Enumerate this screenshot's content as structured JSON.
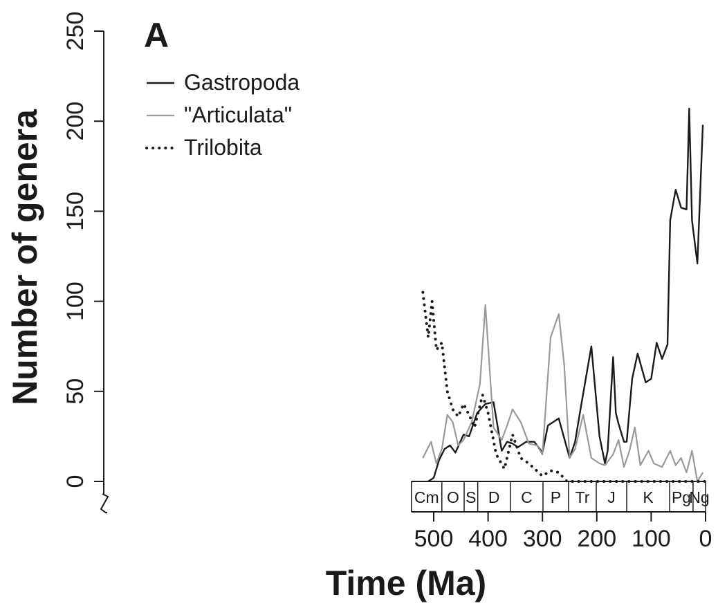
{
  "chart_data": {
    "type": "line",
    "panel_label": "A",
    "title": "",
    "xlabel": "Time (Ma)",
    "ylabel": "Number of genera",
    "xlim": [
      550,
      0
    ],
    "ylim": [
      0,
      250
    ],
    "x_reversed": true,
    "x_ticks": [
      500,
      400,
      300,
      200,
      100,
      0
    ],
    "y_ticks": [
      0,
      50,
      100,
      150,
      200,
      250
    ],
    "x_tick_labels": [
      "500",
      "400",
      "300",
      "200",
      "100",
      "0"
    ],
    "y_tick_labels": [
      "0",
      "50",
      "100",
      "150",
      "200",
      "250"
    ],
    "grid": false,
    "legend_position": "top-left",
    "periods": [
      {
        "label": "Cm",
        "start": 541,
        "end": 485
      },
      {
        "label": "O",
        "start": 485,
        "end": 444
      },
      {
        "label": "S",
        "start": 444,
        "end": 419
      },
      {
        "label": "D",
        "start": 419,
        "end": 359
      },
      {
        "label": "C",
        "start": 359,
        "end": 299
      },
      {
        "label": "P",
        "start": 299,
        "end": 252
      },
      {
        "label": "Tr",
        "start": 252,
        "end": 201
      },
      {
        "label": "J",
        "start": 201,
        "end": 145
      },
      {
        "label": "K",
        "start": 145,
        "end": 66
      },
      {
        "label": "Pg",
        "start": 66,
        "end": 23
      },
      {
        "label": "Ng",
        "start": 23,
        "end": 0
      }
    ],
    "series": [
      {
        "name": "Gastropoda",
        "color": "#1a1a1a",
        "style": "solid",
        "x": [
          510,
          500,
          490,
          480,
          470,
          460,
          445,
          435,
          420,
          405,
          390,
          375,
          365,
          355,
          345,
          330,
          315,
          300,
          290,
          270,
          250,
          240,
          230,
          210,
          195,
          185,
          180,
          170,
          165,
          160,
          150,
          145,
          135,
          125,
          110,
          100,
          90,
          80,
          70,
          65,
          55,
          45,
          35,
          30,
          25,
          15,
          5
        ],
        "y": [
          0,
          2,
          12,
          18,
          20,
          16,
          26,
          25,
          38,
          43,
          44,
          17,
          22,
          21,
          19,
          22,
          22,
          16,
          31,
          35,
          13,
          22,
          40,
          75,
          25,
          10,
          17,
          69,
          38,
          32,
          22,
          22,
          57,
          71,
          55,
          57,
          77,
          68,
          76,
          145,
          162,
          152,
          151,
          207,
          145,
          121,
          198
        ]
      },
      {
        "name": "\"Articulata\"",
        "color": "#999999",
        "style": "solid",
        "x": [
          520,
          505,
          495,
          485,
          475,
          465,
          455,
          445,
          430,
          415,
          405,
          390,
          375,
          365,
          355,
          340,
          325,
          310,
          300,
          285,
          270,
          260,
          250,
          240,
          225,
          210,
          195,
          185,
          170,
          160,
          150,
          140,
          130,
          120,
          105,
          95,
          80,
          65,
          55,
          45,
          35,
          25,
          15,
          5
        ],
        "y": [
          13,
          22,
          10,
          18,
          37,
          33,
          20,
          23,
          33,
          54,
          98,
          30,
          23,
          31,
          40,
          33,
          21,
          20,
          15,
          80,
          93,
          65,
          13,
          18,
          37,
          13,
          10,
          9,
          15,
          23,
          8,
          17,
          30,
          9,
          17,
          10,
          8,
          17,
          9,
          13,
          5,
          17,
          0,
          5
        ]
      },
      {
        "name": "Trilobita",
        "color": "#1a1a1a",
        "style": "dotted",
        "x": [
          520,
          510,
          503,
          495,
          485,
          475,
          465,
          455,
          445,
          435,
          425,
          410,
          400,
          385,
          370,
          355,
          340,
          325,
          300,
          285,
          270,
          255,
          250,
          200,
          150,
          100,
          50,
          0
        ],
        "y": [
          105,
          80,
          100,
          73,
          77,
          50,
          40,
          36,
          43,
          37,
          30,
          48,
          38,
          15,
          7,
          26,
          13,
          10,
          3,
          6,
          5,
          0,
          0,
          0,
          0,
          0,
          0,
          0
        ]
      }
    ]
  }
}
